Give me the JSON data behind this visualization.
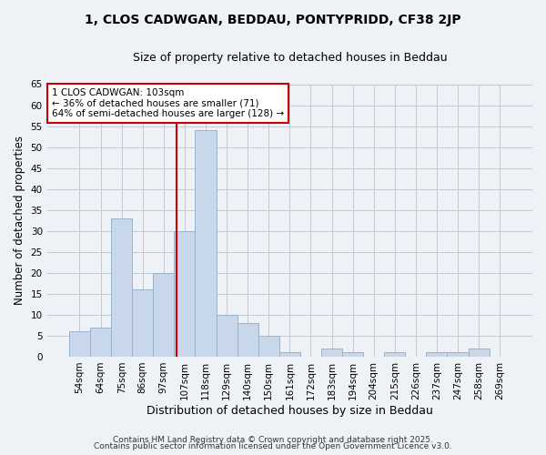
{
  "title_line1": "1, CLOS CADWGAN, BEDDAU, PONTYPRIDD, CF38 2JP",
  "title_line2": "Size of property relative to detached houses in Beddau",
  "xlabel": "Distribution of detached houses by size in Beddau",
  "ylabel": "Number of detached properties",
  "categories": [
    "54sqm",
    "64sqm",
    "75sqm",
    "86sqm",
    "97sqm",
    "107sqm",
    "118sqm",
    "129sqm",
    "140sqm",
    "150sqm",
    "161sqm",
    "172sqm",
    "183sqm",
    "194sqm",
    "204sqm",
    "215sqm",
    "226sqm",
    "237sqm",
    "247sqm",
    "258sqm",
    "269sqm"
  ],
  "values": [
    6,
    7,
    33,
    16,
    20,
    30,
    54,
    10,
    8,
    5,
    1,
    0,
    2,
    1,
    0,
    1,
    0,
    1,
    1,
    2,
    0
  ],
  "bar_color": "#c8d8ea",
  "bar_edgecolor": "#9ab4cc",
  "annotation_text": "1 CLOS CADWGAN: 103sqm\n← 36% of detached houses are smaller (71)\n64% of semi-detached houses are larger (128) →",
  "annotation_box_color": "white",
  "annotation_box_edgecolor": "#cc0000",
  "vline_color": "#cc0000",
  "ylim": [
    0,
    65
  ],
  "yticks": [
    0,
    5,
    10,
    15,
    20,
    25,
    30,
    35,
    40,
    45,
    50,
    55,
    60,
    65
  ],
  "footer_line1": "Contains HM Land Registry data © Crown copyright and database right 2025.",
  "footer_line2": "Contains public sector information licensed under the Open Government Licence v3.0.",
  "bg_color": "#eef2f7",
  "plot_bg_color": "#eef2f7",
  "grid_color": "#c0cad8",
  "title1_fontsize": 10,
  "title2_fontsize": 9,
  "tick_fontsize": 7.5,
  "ylabel_fontsize": 8.5,
  "xlabel_fontsize": 9,
  "annot_fontsize": 7.5,
  "footer_fontsize": 6.5
}
